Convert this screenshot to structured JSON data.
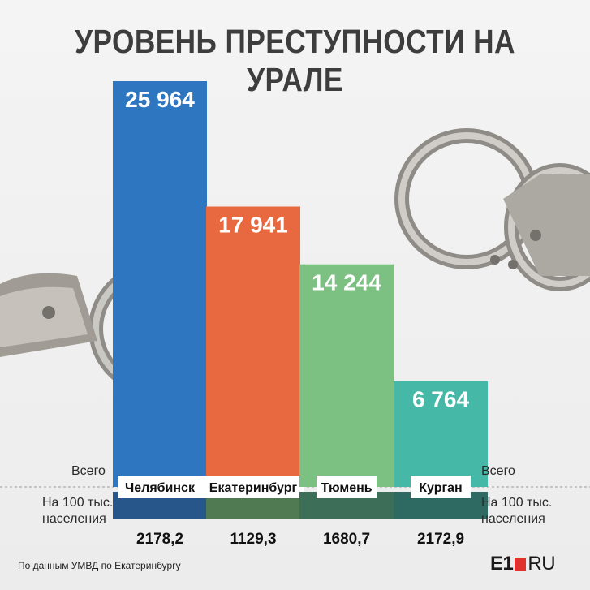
{
  "title": "УРОВЕНЬ ПРЕСТУПНОСТИ НА УРАЛЕ",
  "labels": {
    "total": "Всего",
    "per100k_line1": "На 100 тыс.",
    "per100k_line2": "населения"
  },
  "source": "По данным УМВД по Екатеринбургу",
  "logo": {
    "e1": "E1",
    "ru": "RU"
  },
  "colors": {
    "chelyabinsk": "#2f76c1",
    "ekaterinburg": "#e8693f",
    "tyumen": "#7cc082",
    "kurgan": "#45b8a7"
  },
  "chart_data": {
    "type": "bar",
    "title": "УРОВЕНЬ ПРЕСТУПНОСТИ НА УРАЛЕ",
    "categories": [
      "Челябинск",
      "Екатеринбург",
      "Тюмень",
      "Курган"
    ],
    "series": [
      {
        "name": "Всего",
        "values": [
          25964,
          17941,
          14244,
          6764
        ],
        "labels": [
          "25 964",
          "17 941",
          "14 244",
          "6 764"
        ]
      },
      {
        "name": "На 100 тыс. населения",
        "values": [
          2178.2,
          1129.3,
          1680.7,
          2172.9
        ],
        "labels": [
          "2178,2",
          "1129,3",
          "1680,7",
          "2172,9"
        ]
      }
    ],
    "ylim": [
      0,
      25964
    ]
  }
}
